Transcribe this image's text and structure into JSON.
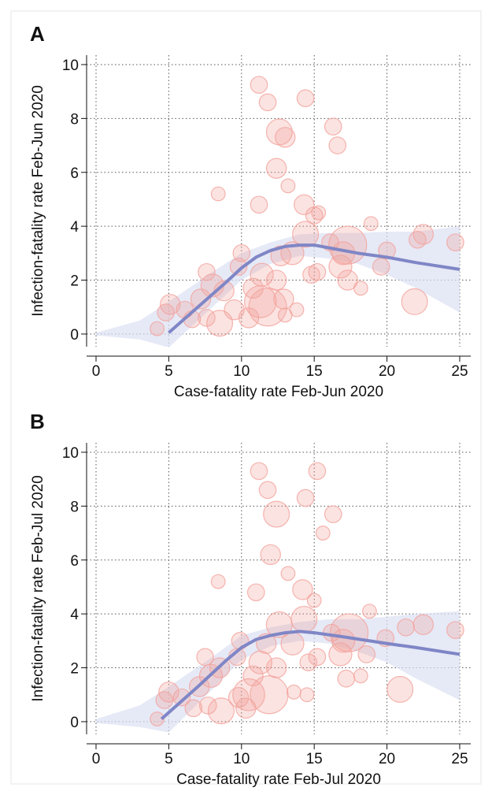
{
  "chart_data": [
    {
      "type": "scatter",
      "label": "A",
      "xlabel": "Case-fatality rate Feb-Jun 2020",
      "ylabel": "Infection-fatality rate Feb-Jun 2020",
      "xlim": [
        -0.65,
        25.76
      ],
      "ylim": [
        -0.47,
        10.35
      ],
      "xticks": [
        0,
        5,
        10,
        15,
        20,
        25
      ],
      "yticks": [
        0,
        2,
        4,
        6,
        8,
        10
      ],
      "grid": true,
      "points": {
        "color": "#f2a29c",
        "x": [
          11.2,
          11.8,
          14.4,
          12.6,
          13,
          16.3,
          16.6,
          12.4,
          13.2,
          8.4,
          11.2,
          14.3,
          15.0,
          15.3,
          18.9,
          14.4,
          17.3,
          16.1,
          17.0,
          20.0,
          22.1,
          22.5,
          24.7,
          19.6,
          21.9,
          18.2,
          16.8,
          17.3,
          15.2,
          13.5,
          12.7,
          10.0,
          9.8,
          11.4,
          12.4,
          11.8,
          11.3,
          10.5,
          9.5,
          8.5,
          7.6,
          6.6,
          6.1,
          5.1,
          4.8,
          4.2,
          7.2,
          8.0,
          8.8,
          7.6,
          13.8,
          13.0,
          14.8,
          10.8,
          12.9
        ],
        "y": [
          9.25,
          8.6,
          8.75,
          7.5,
          7.3,
          7.7,
          7.0,
          6.15,
          5.5,
          5.2,
          4.8,
          4.8,
          4.4,
          4.5,
          4.1,
          3.7,
          3.3,
          3.4,
          3.0,
          3.1,
          3.5,
          3.7,
          3.4,
          2.5,
          1.2,
          1.7,
          2.5,
          2.0,
          2.3,
          3.0,
          2.9,
          3.0,
          2.5,
          2.2,
          2.0,
          1.0,
          1.2,
          0.6,
          0.9,
          0.4,
          0.6,
          0.55,
          0.9,
          1.1,
          0.8,
          0.2,
          1.3,
          1.8,
          1.6,
          2.3,
          0.9,
          0.7,
          2.2,
          1.7,
          1.3
        ],
        "sizes": [
          3,
          3,
          3,
          6,
          4,
          3,
          3,
          4,
          2,
          2,
          3,
          4,
          3,
          2,
          2,
          6,
          10,
          3,
          5,
          3,
          3,
          4,
          3,
          3,
          6,
          2,
          5,
          4,
          3,
          5,
          4,
          3,
          3,
          5,
          4,
          10,
          8,
          4,
          4,
          6,
          3,
          3,
          3,
          4,
          3,
          2,
          4,
          5,
          4,
          3,
          2,
          2,
          3,
          4,
          4
        ]
      },
      "fit": {
        "color": "#7f86c6",
        "x": [
          5,
          7,
          9,
          10,
          11,
          12,
          13,
          14,
          15,
          16,
          17,
          18,
          20,
          22,
          25
        ],
        "y": [
          0.05,
          1.0,
          1.95,
          2.45,
          2.85,
          3.1,
          3.25,
          3.3,
          3.3,
          3.2,
          3.1,
          3.0,
          2.85,
          2.65,
          2.4
        ]
      },
      "band": {
        "color": "#dcdff2",
        "x": [
          0,
          3,
          5,
          8,
          10,
          12,
          14,
          16,
          18,
          20,
          22,
          25
        ],
        "lower": [
          -0.05,
          -0.2,
          -0.5,
          1.0,
          2.0,
          2.6,
          2.9,
          2.8,
          2.6,
          2.2,
          1.7,
          0.8
        ],
        "upper": [
          0.05,
          0.5,
          1.2,
          2.3,
          3.0,
          3.4,
          3.7,
          3.75,
          3.75,
          3.8,
          3.8,
          4.0
        ]
      }
    },
    {
      "type": "scatter",
      "label": "B",
      "xlabel": "Case-fatality rate Feb-Jul 2020",
      "ylabel": "Infection-fatality rate Feb-Jul 2020",
      "xlim": [
        -0.65,
        25.76
      ],
      "ylim": [
        -0.47,
        10.35
      ],
      "xticks": [
        0,
        5,
        10,
        15,
        20,
        25
      ],
      "yticks": [
        0,
        2,
        4,
        6,
        8,
        10
      ],
      "grid": true,
      "points": {
        "color": "#f2a29c",
        "x": [
          11.2,
          15.2,
          11.8,
          14.4,
          12.4,
          16.3,
          15.6,
          12.0,
          13.2,
          8.4,
          11.0,
          14.2,
          15.0,
          18.8,
          14.3,
          17.4,
          12.6,
          16.2,
          17.0,
          19.9,
          21.3,
          22.5,
          24.7,
          20.9,
          18.2,
          17.2,
          16.8,
          18.6,
          15.2,
          13.5,
          11.7,
          9.9,
          9.7,
          11.3,
          12.4,
          11.9,
          10.5,
          10.3,
          9.8,
          8.6,
          7.7,
          6.7,
          5.9,
          5.0,
          4.7,
          4.2,
          7.1,
          7.9,
          8.5,
          7.5,
          14.5,
          13.6,
          14.6,
          10.8
        ],
        "y": [
          9.3,
          9.3,
          8.6,
          8.3,
          7.7,
          7.7,
          7.0,
          6.2,
          5.5,
          5.2,
          4.8,
          4.9,
          4.5,
          4.1,
          3.8,
          3.3,
          3.6,
          3.3,
          3.0,
          3.1,
          3.5,
          3.6,
          3.4,
          1.2,
          1.7,
          1.6,
          2.5,
          2.5,
          2.4,
          2.9,
          2.9,
          3.0,
          2.4,
          2.2,
          2.0,
          1.0,
          1.0,
          0.5,
          0.9,
          0.4,
          0.6,
          0.5,
          0.9,
          1.1,
          0.8,
          0.1,
          1.3,
          1.7,
          2.0,
          2.4,
          1.0,
          1.1,
          2.2,
          1.7
        ],
        "sizes": [
          3,
          3,
          3,
          3,
          6,
          3,
          2,
          4,
          2,
          2,
          3,
          4,
          2,
          2,
          6,
          10,
          6,
          3,
          5,
          3,
          3,
          4,
          3,
          6,
          2,
          3,
          5,
          3,
          3,
          5,
          4,
          3,
          3,
          5,
          4,
          10,
          8,
          4,
          4,
          6,
          3,
          3,
          3,
          4,
          3,
          2,
          4,
          5,
          4,
          3,
          2,
          2,
          3,
          4
        ]
      },
      "fit": {
        "color": "#7f86c6",
        "x": [
          4.5,
          7,
          9,
          10,
          11,
          12,
          13,
          14,
          15,
          17,
          20,
          22,
          25
        ],
        "y": [
          0.1,
          1.3,
          2.3,
          2.75,
          3.05,
          3.2,
          3.3,
          3.35,
          3.3,
          3.15,
          2.9,
          2.75,
          2.5
        ]
      },
      "band": {
        "color": "#dcdff2",
        "x": [
          0,
          3,
          5,
          8,
          10,
          12,
          14,
          16,
          18,
          20,
          22,
          25
        ],
        "lower": [
          -0.05,
          -0.2,
          -0.4,
          1.2,
          2.3,
          2.8,
          3.0,
          2.9,
          2.6,
          2.2,
          1.6,
          0.8
        ],
        "upper": [
          0.1,
          0.6,
          1.3,
          2.4,
          3.2,
          3.5,
          3.7,
          3.8,
          3.8,
          3.9,
          4.0,
          4.1
        ]
      }
    }
  ]
}
